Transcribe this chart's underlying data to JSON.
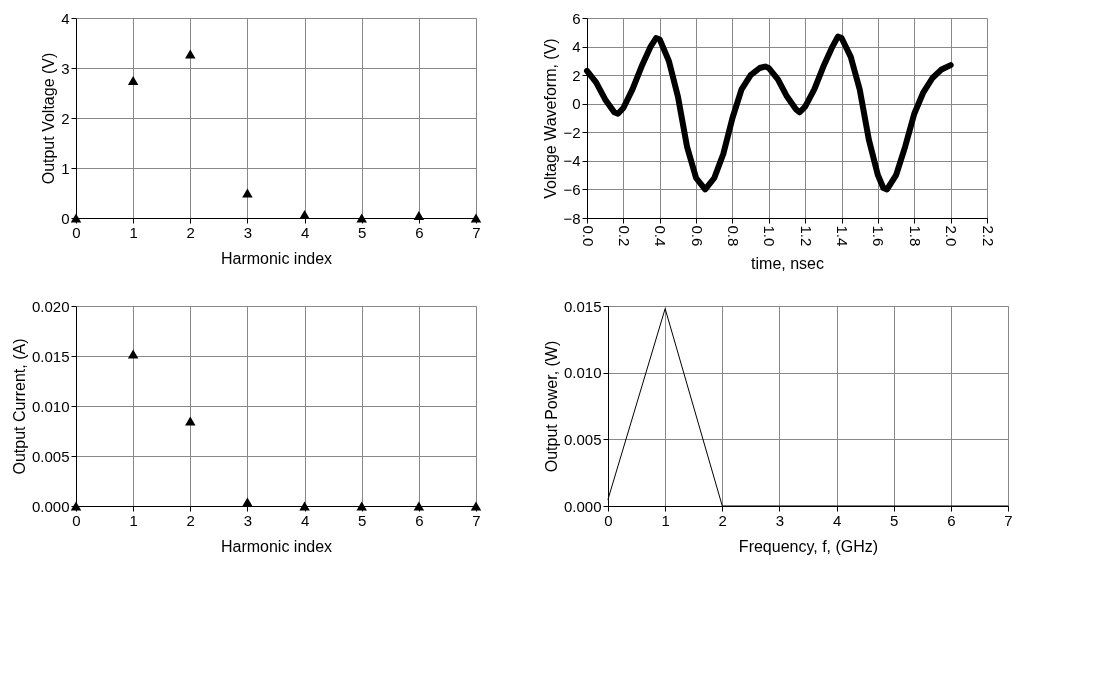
{
  "chart_data": [
    {
      "type": "scatter",
      "xlabel": "Harmonic index",
      "ylabel": "Output Voltage (V)",
      "marker": "triangle",
      "grid": true,
      "series": [
        {
          "color": "#000000",
          "x": [
            0,
            1,
            2,
            3,
            4,
            5,
            6,
            7
          ],
          "values": [
            0,
            2.75,
            3.28,
            0.5,
            0.07,
            0,
            0.05,
            0
          ]
        }
      ],
      "xlim": [
        0,
        7
      ],
      "xticks": [
        0,
        1,
        2,
        3,
        4,
        5,
        6,
        7
      ],
      "ylim": [
        0,
        4
      ],
      "yticks": [
        0,
        1,
        2,
        3,
        4
      ]
    },
    {
      "type": "line",
      "xlabel": "time, nsec",
      "ylabel": "Voltage Waveform, (V)",
      "marker": "none",
      "grid": true,
      "series": [
        {
          "color": "#000000",
          "x": [
            0,
            0.05,
            0.1,
            0.15,
            0.17,
            0.2,
            0.25,
            0.3,
            0.35,
            0.38,
            0.4,
            0.45,
            0.5,
            0.55,
            0.6,
            0.65,
            0.7,
            0.75,
            0.8,
            0.85,
            0.9,
            0.95,
            0.98,
            1.0,
            1.05,
            1.1,
            1.15,
            1.17,
            1.2,
            1.25,
            1.3,
            1.35,
            1.38,
            1.4,
            1.45,
            1.5,
            1.55,
            1.6,
            1.63,
            1.65,
            1.7,
            1.75,
            1.8,
            1.85,
            1.9,
            1.95,
            2.0
          ],
          "values": [
            2.3,
            1.5,
            0.3,
            -0.6,
            -0.7,
            -0.3,
            1,
            2.6,
            4,
            4.6,
            4.5,
            3,
            0.5,
            -3,
            -5.2,
            -6,
            -5.2,
            -3.5,
            -1,
            1,
            2,
            2.5,
            2.6,
            2.5,
            1.7,
            0.5,
            -0.4,
            -0.6,
            -0.2,
            1,
            2.6,
            4,
            4.7,
            4.6,
            3.3,
            1,
            -2.5,
            -5,
            -5.9,
            -6,
            -5,
            -3,
            -0.7,
            0.8,
            1.8,
            2.4,
            2.7
          ]
        }
      ],
      "xlim": [
        0,
        2.2
      ],
      "xticks": [
        {
          "value": 0,
          "label": "0.0"
        },
        0.2,
        0.4,
        0.6,
        0.8,
        {
          "value": 1,
          "label": "1.0"
        },
        1.2,
        1.4,
        1.6,
        1.8,
        {
          "value": 2,
          "label": "2.0"
        },
        2.2
      ],
      "ylim": [
        -8,
        6
      ],
      "yticks": [
        -8,
        -6,
        -4,
        -2,
        0,
        2,
        4,
        6
      ]
    },
    {
      "type": "scatter",
      "xlabel": "Harmonic index",
      "ylabel": "Output Current, (A)",
      "marker": "triangle",
      "grid": true,
      "series": [
        {
          "color": "#000000",
          "x": [
            0,
            1,
            2,
            3,
            4,
            5,
            6,
            7
          ],
          "values": [
            0,
            0.0152,
            0.0085,
            0.0004,
            0,
            0,
            0,
            0
          ]
        }
      ],
      "xlim": [
        0,
        7
      ],
      "xticks": [
        0,
        1,
        2,
        3,
        4,
        5,
        6,
        7
      ],
      "ylim": [
        0,
        0.02
      ],
      "yticks": [
        {
          "value": 0,
          "label": "0.000"
        },
        0.005,
        {
          "value": 0.01,
          "label": "0.010"
        },
        0.015,
        {
          "value": 0.02,
          "label": "0.020"
        }
      ]
    },
    {
      "type": "line",
      "xlabel": "Frequency, f, (GHz)",
      "ylabel": "Output Power, (W)",
      "marker": "none",
      "grid": true,
      "series": [
        {
          "color": "#000000",
          "x": [
            0,
            1,
            2,
            3,
            4,
            5,
            6,
            7
          ],
          "values": [
            0.0005,
            0.0148,
            0,
            0,
            0,
            0,
            0,
            0
          ]
        }
      ],
      "xlim": [
        0,
        7
      ],
      "xticks": [
        0,
        1,
        2,
        3,
        4,
        5,
        6,
        7
      ],
      "ylim": [
        0,
        0.015
      ],
      "yticks": [
        {
          "value": 0,
          "label": "0.000"
        },
        0.005,
        {
          "value": 0.01,
          "label": "0.010"
        },
        0.015
      ]
    }
  ]
}
